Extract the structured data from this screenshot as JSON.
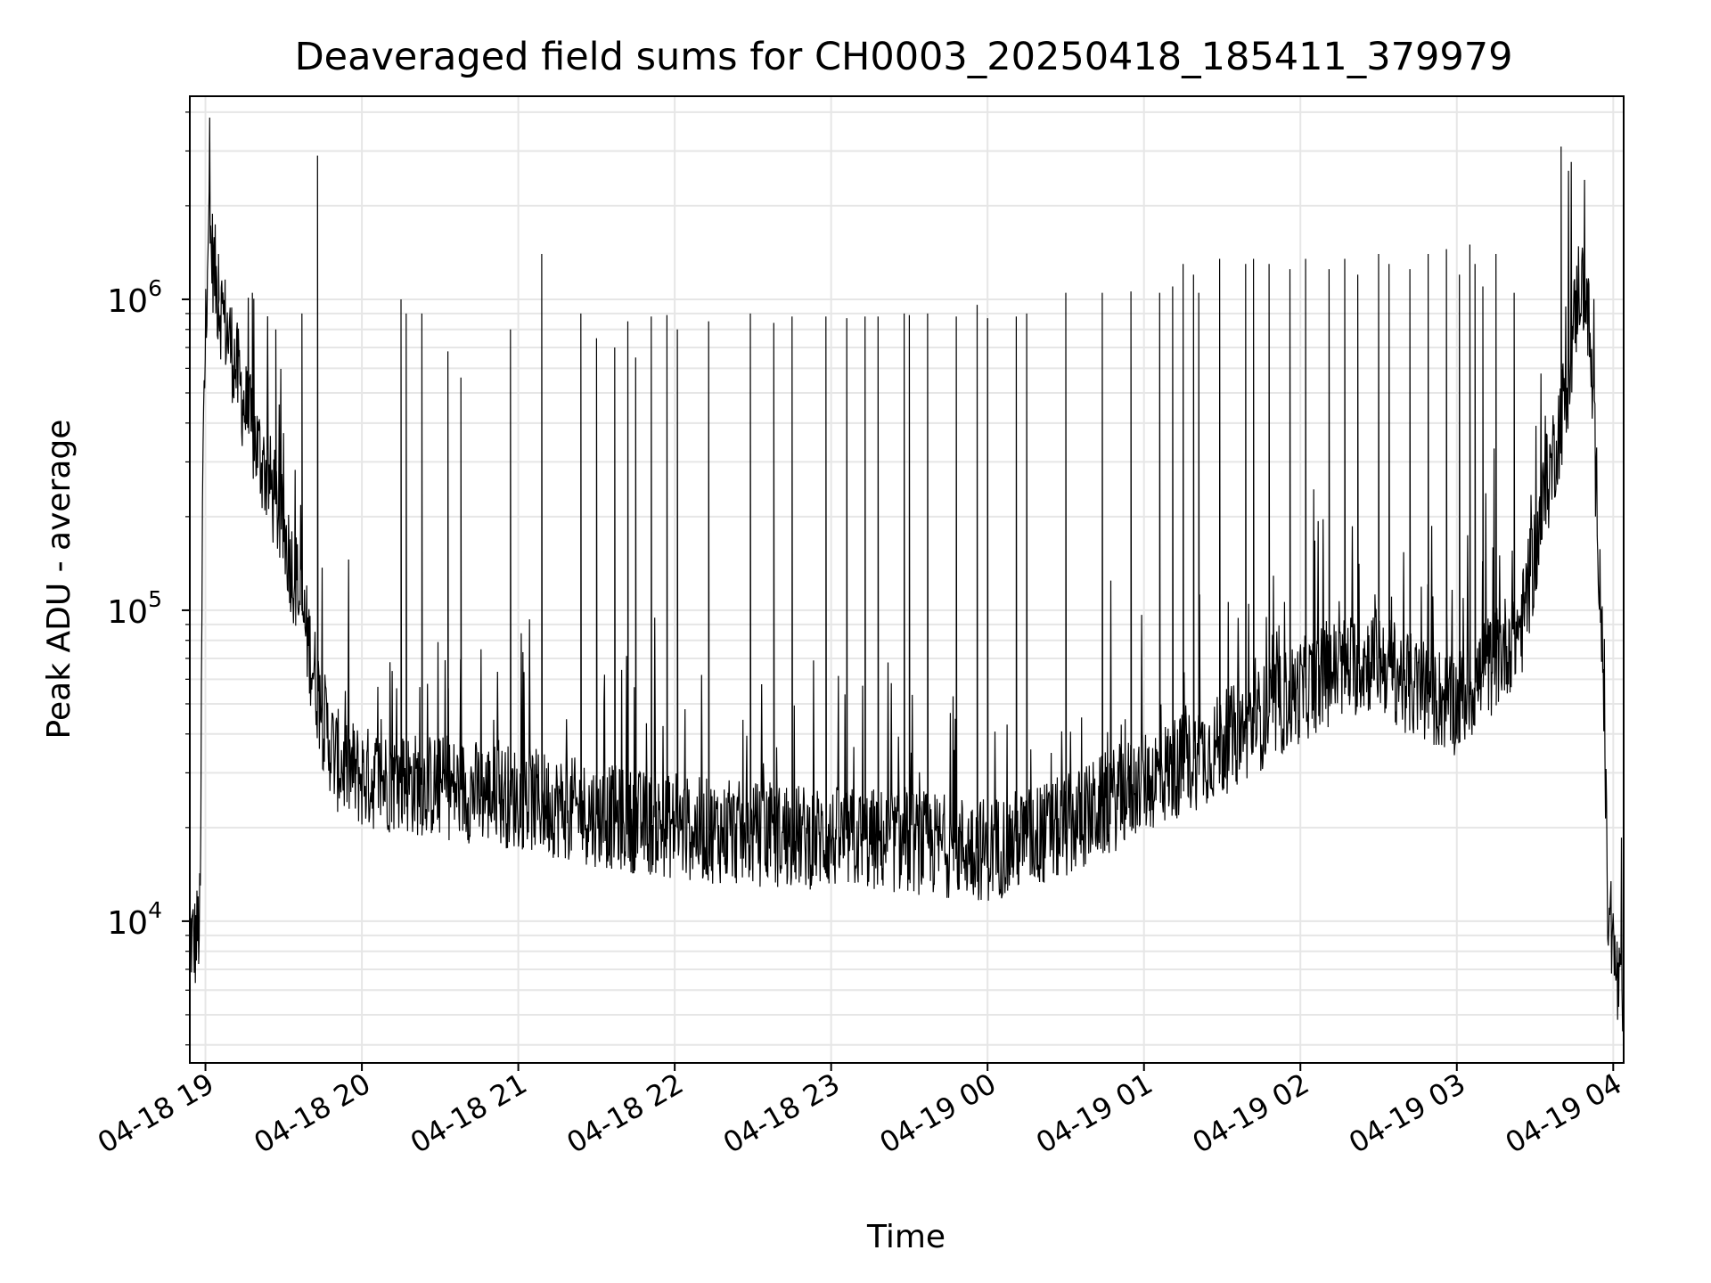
{
  "chart_data": {
    "type": "line",
    "title": "Deaveraged field sums for CH0003_20250418_185411_379979",
    "xlabel": "Time",
    "ylabel": "Peak ADU - average",
    "yscale": "log",
    "ylim": [
      3500,
      4500000
    ],
    "xlim": [
      "2025-04-18 18:54",
      "2025-04-19 04:04"
    ],
    "x_ticks": [
      "04-18 19",
      "04-18 20",
      "04-18 21",
      "04-18 22",
      "04-18 23",
      "04-19 00",
      "04-19 01",
      "04-19 02",
      "04-19 03",
      "04-19 04"
    ],
    "y_ticks": [
      {
        "value": 10000,
        "base": "10",
        "exp": "4"
      },
      {
        "value": 100000,
        "base": "10",
        "exp": "5"
      },
      {
        "value": 1000000,
        "base": "10",
        "exp": "6"
      }
    ],
    "grid": true,
    "line_color": "#000000",
    "series": [
      {
        "baseline": {
          "x": [
            "2025-04-18 18:54",
            "2025-04-18 18:56",
            "2025-04-18 18:58",
            "2025-04-18 18:59",
            "2025-04-18 19:01",
            "2025-04-18 19:03",
            "2025-04-18 19:05",
            "2025-04-18 19:10",
            "2025-04-18 19:15",
            "2025-04-18 19:20",
            "2025-04-18 19:25",
            "2025-04-18 19:30",
            "2025-04-18 19:35",
            "2025-04-18 19:40",
            "2025-04-18 19:45",
            "2025-04-18 19:50",
            "2025-04-18 20:00",
            "2025-04-18 20:30",
            "2025-04-18 21:00",
            "2025-04-18 21:30",
            "2025-04-18 22:00",
            "2025-04-18 22:30",
            "2025-04-18 23:00",
            "2025-04-18 23:30",
            "2025-04-19 00:00",
            "2025-04-19 00:30",
            "2025-04-19 00:50",
            "2025-04-19 01:00",
            "2025-04-19 01:15",
            "2025-04-19 01:30",
            "2025-04-19 01:45",
            "2025-04-19 02:00",
            "2025-04-19 02:15",
            "2025-04-19 02:30",
            "2025-04-19 02:45",
            "2025-04-19 03:00",
            "2025-04-19 03:15",
            "2025-04-19 03:25",
            "2025-04-19 03:35",
            "2025-04-19 03:42",
            "2025-04-19 03:47",
            "2025-04-19 03:50",
            "2025-04-19 03:52",
            "2025-04-19 03:54",
            "2025-04-19 03:56",
            "2025-04-19 03:58",
            "2025-04-19 04:00",
            "2025-04-19 04:02",
            "2025-04-19 04:04"
          ],
          "y": [
            9000,
            8500,
            10000,
            300000,
            1800000,
            1300000,
            1000000,
            700000,
            450000,
            330000,
            250000,
            180000,
            120000,
            75000,
            45000,
            33000,
            29000,
            27000,
            25000,
            22000,
            20000,
            19000,
            18500,
            18000,
            17000,
            20000,
            25000,
            28000,
            32000,
            37000,
            45000,
            55000,
            65000,
            70000,
            55000,
            50000,
            70000,
            90000,
            260000,
            500000,
            1150000,
            1000000,
            500000,
            200000,
            70000,
            10000,
            8000,
            6000,
            5000
          ]
        },
        "spikes": {
          "x": [
            "2025-04-18 19:05",
            "2025-04-18 19:18",
            "2025-04-18 19:27",
            "2025-04-18 19:37",
            "2025-04-18 19:43",
            "2025-04-18 20:15",
            "2025-04-18 20:17",
            "2025-04-18 20:23",
            "2025-04-18 20:33",
            "2025-04-18 20:38",
            "2025-04-18 20:57",
            "2025-04-18 21:09",
            "2025-04-18 21:24",
            "2025-04-18 21:30",
            "2025-04-18 21:37",
            "2025-04-18 21:42",
            "2025-04-18 21:45",
            "2025-04-18 21:51",
            "2025-04-18 21:57",
            "2025-04-18 22:01",
            "2025-04-18 22:13",
            "2025-04-18 22:29",
            "2025-04-18 22:38",
            "2025-04-18 22:45",
            "2025-04-18 22:58",
            "2025-04-18 23:06",
            "2025-04-18 23:13",
            "2025-04-18 23:18",
            "2025-04-18 23:28",
            "2025-04-18 23:30",
            "2025-04-18 23:37",
            "2025-04-18 23:48",
            "2025-04-18 23:56",
            "2025-04-19 00:00",
            "2025-04-19 00:11",
            "2025-04-19 00:15",
            "2025-04-19 00:30",
            "2025-04-19 00:44",
            "2025-04-19 00:55",
            "2025-04-19 01:06",
            "2025-04-19 01:11",
            "2025-04-19 01:15",
            "2025-04-19 01:19",
            "2025-04-19 01:21",
            "2025-04-19 01:29",
            "2025-04-19 01:39",
            "2025-04-19 01:42",
            "2025-04-19 01:48",
            "2025-04-19 01:56",
            "2025-04-19 02:02",
            "2025-04-19 02:11",
            "2025-04-19 02:17",
            "2025-04-19 02:22",
            "2025-04-19 02:30",
            "2025-04-19 02:34",
            "2025-04-19 02:42",
            "2025-04-19 02:49",
            "2025-04-19 02:56",
            "2025-04-19 03:01",
            "2025-04-19 03:05",
            "2025-04-19 03:07",
            "2025-04-19 03:10",
            "2025-04-19 03:15",
            "2025-04-19 03:22",
            "2025-04-19 03:40"
          ],
          "y": [
            1400000,
            1050000,
            800000,
            900000,
            2900000,
            1000000,
            900000,
            900000,
            680000,
            560000,
            800000,
            1400000,
            900000,
            750000,
            700000,
            850000,
            650000,
            880000,
            890000,
            800000,
            850000,
            900000,
            840000,
            880000,
            880000,
            870000,
            880000,
            880000,
            900000,
            890000,
            900000,
            880000,
            960000,
            870000,
            880000,
            900000,
            1050000,
            1050000,
            1060000,
            1050000,
            1100000,
            1300000,
            1200000,
            1050000,
            1350000,
            1300000,
            1350000,
            1300000,
            1250000,
            1350000,
            1250000,
            1350000,
            1200000,
            1400000,
            1300000,
            1250000,
            1400000,
            1450000,
            1200000,
            1500000,
            1300000,
            1100000,
            1400000,
            1050000,
            3100000
          ]
        }
      }
    ]
  }
}
